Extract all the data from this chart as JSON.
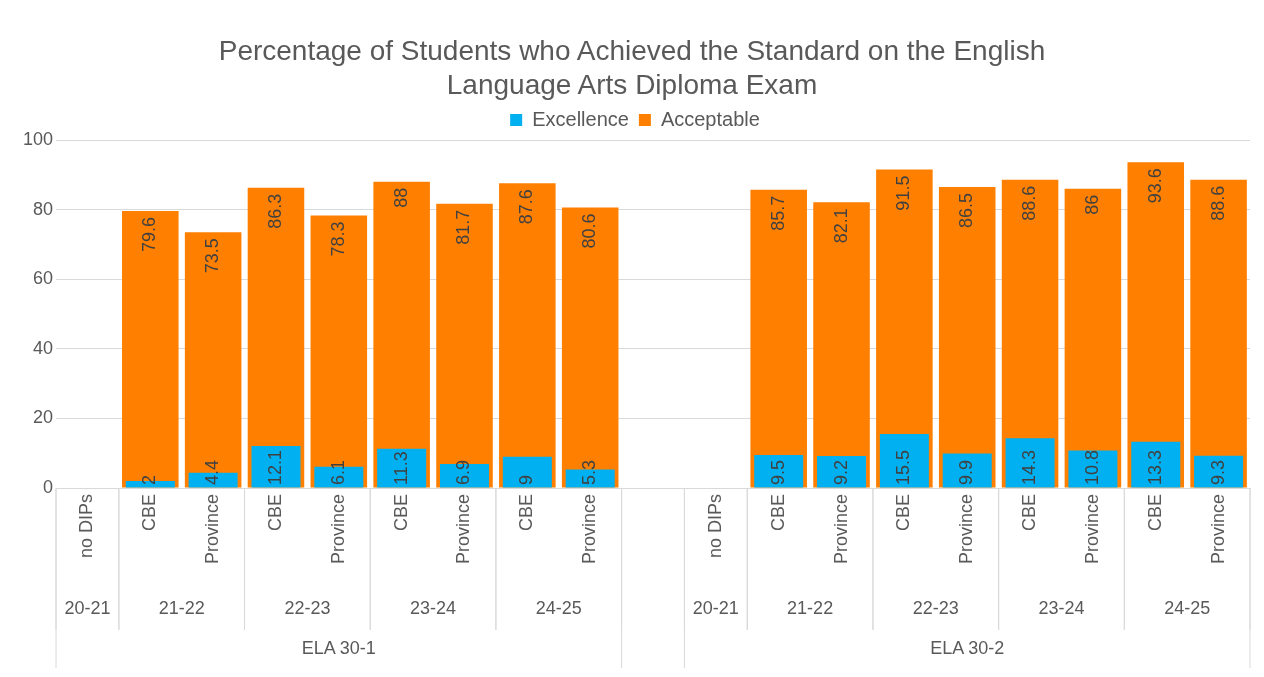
{
  "chart_data": {
    "type": "bar",
    "title": "Percentage of Students who Achieved the Standard on the English Language Arts Diploma Exam",
    "categories": [
      "no DIPs",
      "CBE",
      "Province",
      "CBE",
      "Province",
      "CBE",
      "Province",
      "CBE",
      "Province",
      null,
      "no DIPs",
      "CBE",
      "Province",
      "CBE",
      "Province",
      "CBE",
      "Province",
      "CBE",
      "Province"
    ],
    "series": [
      {
        "name": "Excellence",
        "color": "#00b0f0",
        "values": [
          null,
          2,
          4.4,
          12.1,
          6.1,
          11.3,
          6.9,
          9,
          5.3,
          null,
          null,
          9.5,
          9.2,
          15.5,
          9.9,
          14.3,
          10.8,
          13.3,
          9.3
        ]
      },
      {
        "name": "Acceptable",
        "color": "#ff8000",
        "values": [
          null,
          79.6,
          73.5,
          86.3,
          78.3,
          88,
          81.7,
          87.6,
          80.6,
          null,
          null,
          85.7,
          82.1,
          91.5,
          86.5,
          88.6,
          86,
          93.6,
          88.6
        ]
      }
    ],
    "ylim": [
      0,
      100
    ],
    "yticks": [
      0,
      20,
      40,
      60,
      80,
      100
    ],
    "grid": "y",
    "legend": "top",
    "data_labels": true,
    "annotations": [
      "20-21",
      "21-22",
      "22-23",
      "23-24",
      "24-25",
      "20-21",
      "21-22",
      "22-23",
      "23-24",
      "24-25",
      "ELA 30-1",
      "ELA 30-2"
    ]
  }
}
